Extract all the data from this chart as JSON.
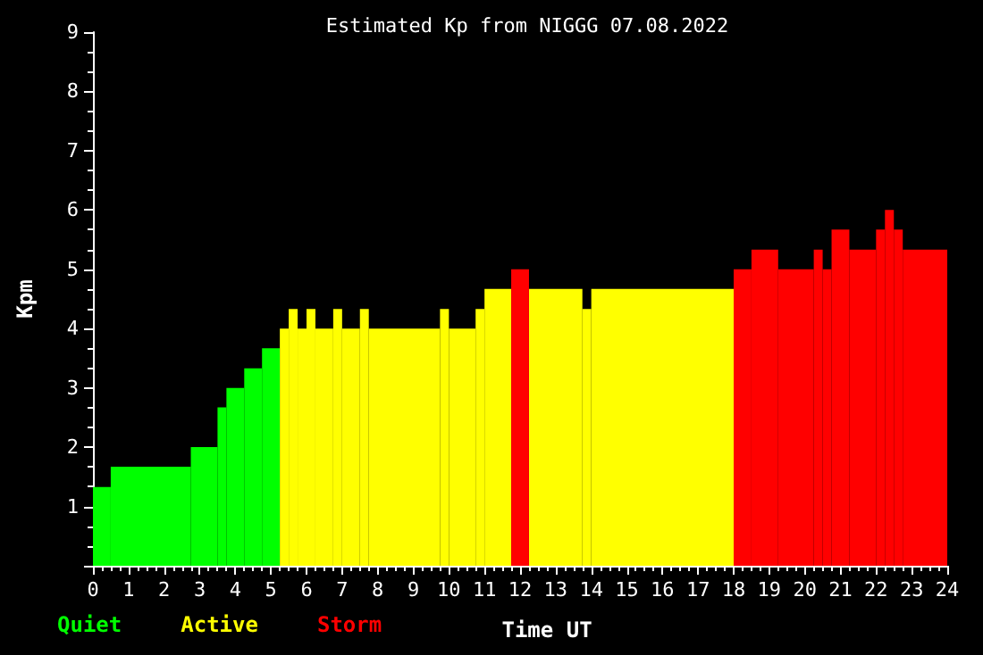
{
  "chart_data": {
    "type": "histogram",
    "title": "Estimated Kp from NIGGG 07.08.2022",
    "xlabel": "Time UT",
    "ylabel": "Kpm",
    "xlim": [
      0,
      24
    ],
    "xticks": [
      0,
      1,
      2,
      3,
      4,
      5,
      6,
      7,
      8,
      9,
      10,
      11,
      12,
      13,
      14,
      15,
      16,
      17,
      18,
      19,
      20,
      21,
      22,
      23,
      24
    ],
    "ylim": [
      0,
      9
    ],
    "yticks": [
      1,
      2,
      3,
      4,
      5,
      6,
      7,
      8,
      9
    ],
    "grid": false,
    "legend": "bottom left",
    "bins": [
      0,
      0.5,
      2.75,
      3.5,
      3.75,
      4.25,
      4.75,
      5.25,
      5.5,
      5.75,
      6,
      6.25,
      6.75,
      7,
      7.5,
      7.75,
      9.75,
      10,
      10.75,
      11,
      11.75,
      12.25,
      13.75,
      14,
      18,
      18.5,
      19.25,
      20.25,
      20.5,
      20.75,
      21.25,
      22,
      22.25,
      22.5,
      22.75,
      24
    ],
    "series": [
      {
        "name": "Quiet",
        "color": "#00ff00",
        "values": [
          1.33,
          1.67,
          2,
          2.67,
          3,
          3.33,
          3.67,
          null,
          null,
          null,
          null,
          null,
          null,
          null,
          null,
          null,
          null,
          null,
          null,
          null,
          null,
          null,
          null,
          null,
          null,
          null,
          null,
          null,
          null,
          null,
          null,
          null,
          null,
          null,
          null
        ]
      },
      {
        "name": "Active",
        "color": "#ffff00",
        "values": [
          null,
          null,
          null,
          null,
          null,
          null,
          null,
          4,
          4.33,
          4,
          4.33,
          4,
          4.33,
          4,
          4.33,
          4,
          4.33,
          4,
          4.33,
          4.67,
          null,
          4.67,
          4.33,
          4.67,
          null,
          null,
          null,
          null,
          null,
          null,
          null,
          null,
          null,
          null,
          null
        ]
      },
      {
        "name": "Storm",
        "color": "#ff0000",
        "values": [
          null,
          null,
          null,
          null,
          null,
          null,
          null,
          null,
          null,
          null,
          null,
          null,
          null,
          null,
          null,
          null,
          null,
          null,
          null,
          null,
          5,
          null,
          null,
          null,
          5,
          5.33,
          5,
          5.33,
          5,
          5.67,
          5.33,
          5.67,
          6,
          5.67,
          5.33
        ]
      }
    ]
  }
}
